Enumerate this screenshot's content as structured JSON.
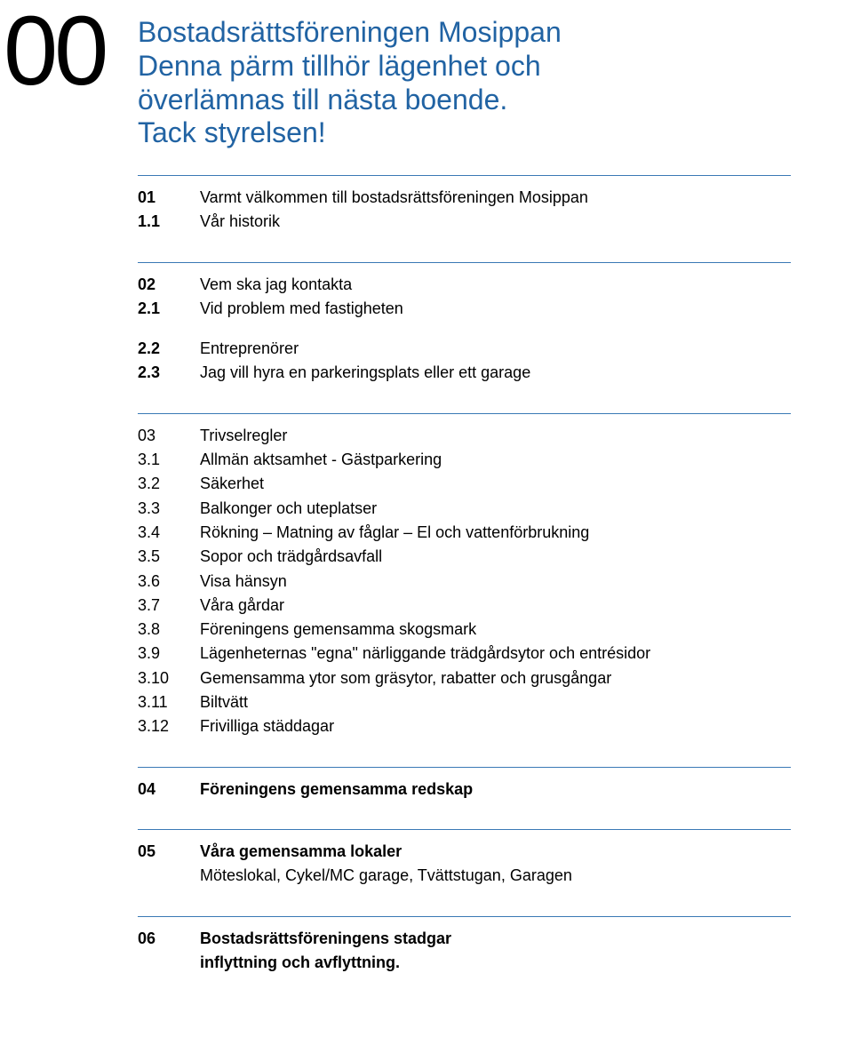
{
  "pageNumber": "00",
  "titleLines": [
    "Bostadsrättsföreningen Mosippan",
    "Denna pärm tillhör lägenhet och",
    "överlämnas till nästa boende.",
    "Tack styrelsen!"
  ],
  "colors": {
    "accent": "#2163a3",
    "rule": "#3a79b5",
    "text": "#000000",
    "background": "#ffffff"
  },
  "sections": [
    {
      "style": "sans",
      "rows": [
        {
          "num": "01",
          "label": "Varmt välkommen till bostadsrättsföreningen Mosippan"
        },
        {
          "num": "1.1",
          "label": "Vår historik"
        }
      ]
    },
    {
      "style": "sans",
      "rows": [
        {
          "num": "02",
          "label": "Vem ska jag kontakta"
        },
        {
          "num": "2.1",
          "label": "Vid problem med fastigheten"
        },
        {
          "spacer": true
        },
        {
          "num": "2.2",
          "label": "Entreprenörer"
        },
        {
          "num": "2.3",
          "label": "Jag vill hyra en parkeringsplats eller ett garage"
        }
      ]
    },
    {
      "style": "serif",
      "rows": [
        {
          "num": "03",
          "label": "Trivselregler"
        },
        {
          "num": "3.1",
          "label": "Allmän aktsamhet - Gästparkering"
        },
        {
          "num": "3.2",
          "label": "Säkerhet"
        },
        {
          "num": "3.3",
          "label": "Balkonger och uteplatser"
        },
        {
          "num": "3.4",
          "label": "Rökning – Matning av fåglar – El och vattenförbrukning"
        },
        {
          "num": "3.5",
          "label": "Sopor och trädgårdsavfall"
        },
        {
          "num": "3.6",
          "label": "Visa hänsyn"
        },
        {
          "num": "3.7",
          "label": "Våra gårdar"
        },
        {
          "num": "3.8",
          "label": "Föreningens gemensamma skogsmark"
        },
        {
          "num": "3.9",
          "label": "Lägenheternas \"egna\" närliggande trädgårdsytor och entrésidor"
        },
        {
          "num": "3.10",
          "label": "Gemensamma ytor som gräsytor, rabatter och grusgångar"
        },
        {
          "num": "3.11",
          "label": "Biltvätt"
        },
        {
          "num": "3.12",
          "label": "Frivilliga städdagar"
        }
      ]
    },
    {
      "style": "sans-bold",
      "rows": [
        {
          "num": "04",
          "label": "Föreningens gemensamma redskap"
        }
      ]
    },
    {
      "style": "sans",
      "rows": [
        {
          "num": "05",
          "label": "Våra gemensamma lokaler",
          "bold": true
        },
        {
          "num": "",
          "label": "Möteslokal, Cykel/MC garage, Tvättstugan, Garagen",
          "indent": true
        }
      ]
    },
    {
      "style": "sans-bold",
      "last": true,
      "rows": [
        {
          "num": "06",
          "label": "Bostadsrättsföreningens stadgar"
        },
        {
          "num": "",
          "label": "inflyttning och avflyttning.",
          "indent": true
        }
      ]
    }
  ]
}
